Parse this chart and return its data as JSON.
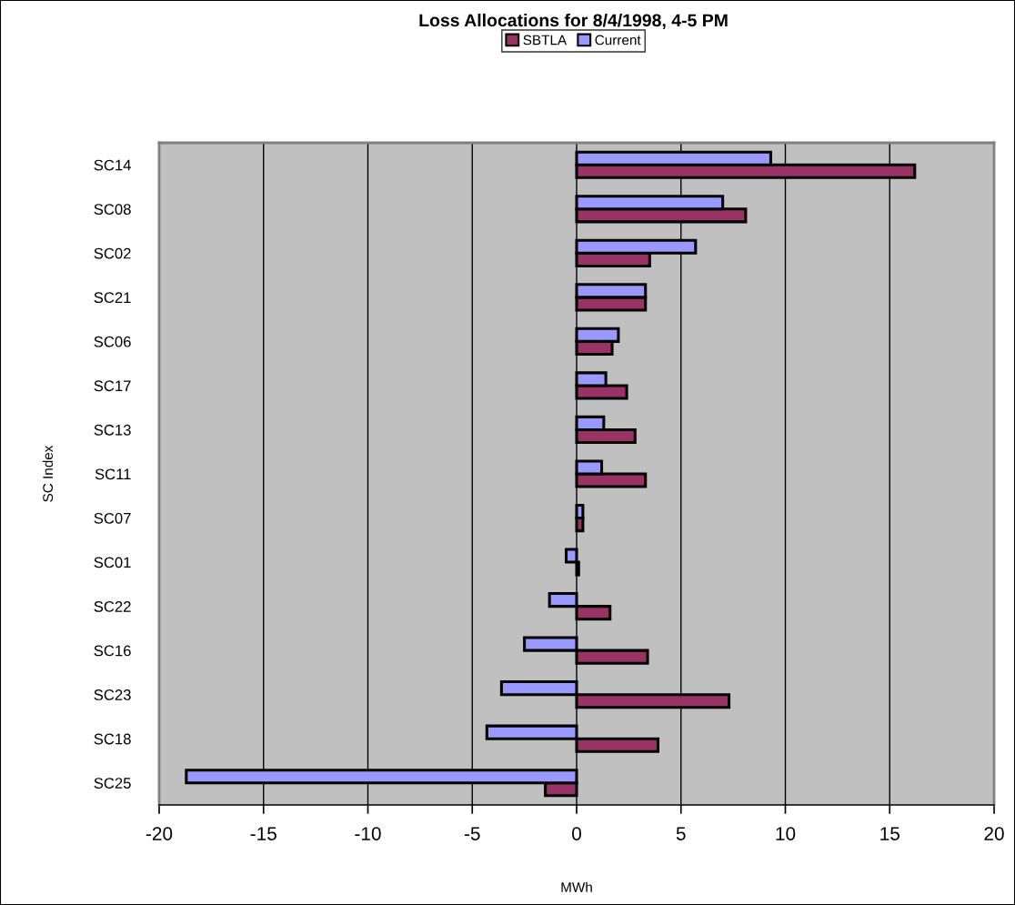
{
  "chart_data": {
    "type": "bar",
    "orientation": "horizontal",
    "title": "Loss Allocations for 8/4/1998, 4-5 PM",
    "xlabel": "MWh",
    "ylabel": "SC Index",
    "categories": [
      "SC14",
      "SC08",
      "SC02",
      "SC21",
      "SC06",
      "SC17",
      "SC13",
      "SC11",
      "SC07",
      "SC01",
      "SC22",
      "SC16",
      "SC23",
      "SC18",
      "SC25"
    ],
    "series": [
      {
        "name": "SBTLA",
        "color": "#993366",
        "values": [
          16.2,
          8.1,
          3.5,
          3.3,
          1.7,
          2.4,
          2.8,
          3.3,
          0.3,
          0.1,
          1.6,
          3.4,
          7.3,
          3.9,
          -1.5
        ]
      },
      {
        "name": "Current",
        "color": "#9999ff",
        "values": [
          9.3,
          7.0,
          5.7,
          3.3,
          2.0,
          1.4,
          1.3,
          1.2,
          0.3,
          -0.5,
          -1.3,
          -2.5,
          -3.6,
          -4.3,
          -18.7
        ]
      }
    ],
    "xlim": [
      -20,
      20
    ],
    "xticks": [
      -20,
      -15,
      -10,
      -5,
      0,
      5,
      10,
      15,
      20
    ],
    "grid": "x",
    "legend": "top"
  }
}
